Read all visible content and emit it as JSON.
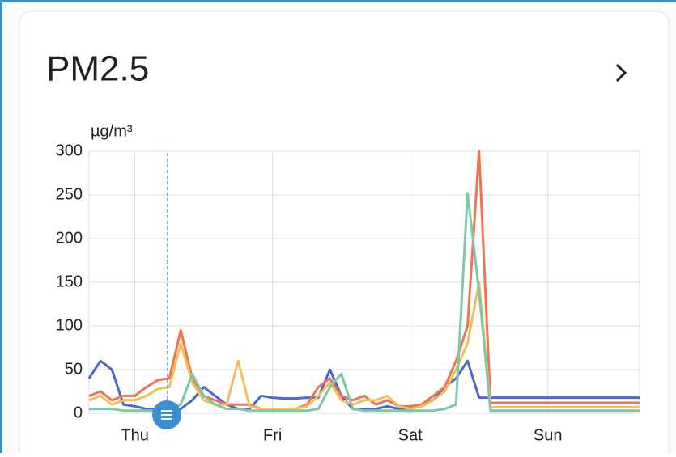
{
  "chart_data": {
    "type": "line",
    "title": "PM2.5",
    "y_label": "µg/m³",
    "x": [
      -8,
      -6,
      -4,
      -2,
      0,
      2,
      4,
      6,
      8,
      10,
      12,
      14,
      16,
      18,
      20,
      22,
      24,
      26,
      28,
      30,
      32,
      34,
      36,
      38,
      40,
      42,
      44,
      46,
      48,
      50,
      52,
      54,
      56,
      58,
      60,
      62,
      64,
      66,
      68,
      70,
      72,
      74,
      76,
      78,
      80,
      82,
      84,
      86,
      88
    ],
    "xlim": [
      -8,
      88
    ],
    "xticks": [
      {
        "value": 0,
        "label": "Thu"
      },
      {
        "value": 24,
        "label": "Fri"
      },
      {
        "value": 48,
        "label": "Sat"
      },
      {
        "value": 72,
        "label": "Sun"
      }
    ],
    "ylim": [
      0,
      300
    ],
    "yticks": [
      0,
      50,
      100,
      150,
      200,
      250,
      300
    ],
    "grid": true,
    "series": [
      {
        "color": "#4a68d0",
        "values": [
          40,
          60,
          50,
          10,
          8,
          5,
          5,
          5,
          5,
          15,
          30,
          20,
          10,
          5,
          5,
          20,
          18,
          17,
          17,
          18,
          18,
          50,
          20,
          5,
          5,
          5,
          8,
          5,
          5,
          10,
          15,
          30,
          40,
          60,
          18,
          18,
          18,
          18,
          18,
          18,
          18,
          18,
          18,
          18,
          18,
          18,
          18,
          18,
          18
        ]
      },
      {
        "color": "#ee7454",
        "values": [
          20,
          25,
          15,
          20,
          20,
          30,
          38,
          40,
          95,
          40,
          20,
          15,
          10,
          10,
          10,
          5,
          5,
          5,
          5,
          10,
          30,
          40,
          20,
          15,
          20,
          10,
          15,
          8,
          8,
          10,
          20,
          30,
          60,
          100,
          300,
          12,
          12,
          12,
          12,
          12,
          12,
          12,
          12,
          12,
          12,
          12,
          12,
          12,
          12
        ]
      },
      {
        "color": "#eec15c",
        "values": [
          15,
          20,
          10,
          15,
          15,
          20,
          28,
          30,
          80,
          35,
          15,
          10,
          10,
          60,
          8,
          5,
          5,
          5,
          5,
          8,
          20,
          35,
          15,
          10,
          15,
          15,
          20,
          8,
          5,
          8,
          15,
          25,
          50,
          80,
          150,
          7,
          7,
          7,
          7,
          7,
          7,
          7,
          7,
          7,
          7,
          7,
          7,
          7,
          7
        ]
      },
      {
        "color": "#7ec8a6",
        "values": [
          5,
          5,
          5,
          3,
          3,
          3,
          3,
          5,
          10,
          45,
          20,
          10,
          5,
          5,
          3,
          3,
          3,
          3,
          3,
          3,
          5,
          30,
          45,
          5,
          3,
          3,
          3,
          3,
          3,
          3,
          3,
          5,
          10,
          252,
          140,
          3,
          3,
          3,
          3,
          3,
          3,
          3,
          3,
          3,
          3,
          3,
          3,
          3,
          3
        ]
      }
    ]
  }
}
